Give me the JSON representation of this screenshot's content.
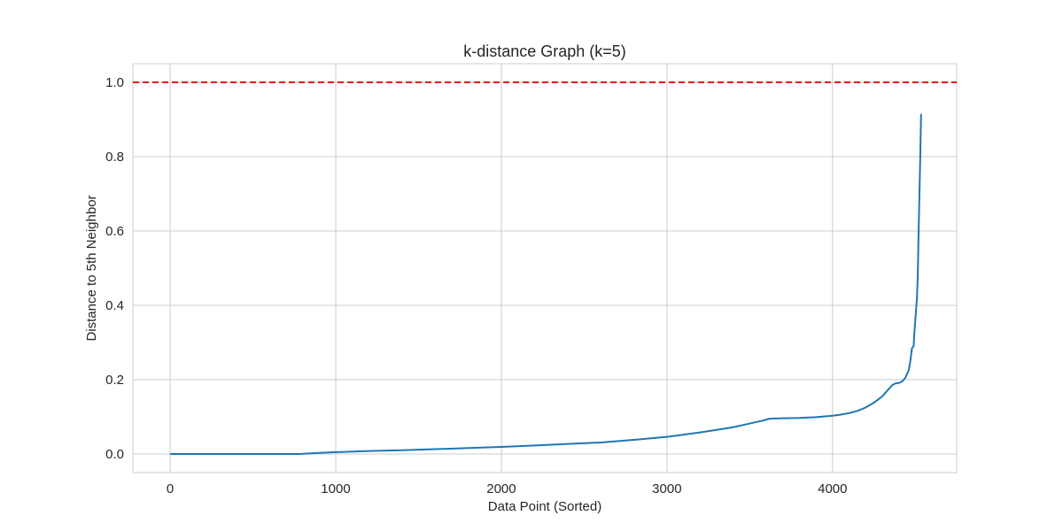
{
  "chart_data": {
    "type": "line",
    "title": "k-distance Graph (k=5)",
    "xlabel": "Data Point (Sorted)",
    "ylabel": "Distance to 5th Neighbor",
    "xlim": [
      -225,
      4750
    ],
    "ylim": [
      -0.05,
      1.05
    ],
    "x_ticks": [
      0,
      1000,
      2000,
      3000,
      4000
    ],
    "x_tick_labels": [
      "0",
      "1000",
      "2000",
      "3000",
      "4000"
    ],
    "y_ticks": [
      0.0,
      0.2,
      0.4,
      0.6,
      0.8,
      1.0
    ],
    "y_tick_labels": [
      "0.0",
      "0.2",
      "0.4",
      "0.6",
      "0.8",
      "1.0"
    ],
    "grid": true,
    "line_color": "#1f77b4",
    "threshold": {
      "y": 1.0,
      "color": "#e8191b",
      "style": "dashed"
    },
    "series": [
      {
        "x": [
          0,
          200,
          400,
          600,
          780,
          900,
          1000,
          1200,
          1400,
          1600,
          1800,
          2000,
          2200,
          2400,
          2600,
          2800,
          3000,
          3100,
          3200,
          3300,
          3400,
          3500,
          3580,
          3620,
          3700,
          3800,
          3900,
          4000,
          4050,
          4100,
          4150,
          4200,
          4250,
          4300,
          4330,
          4360,
          4380,
          4400,
          4420,
          4440,
          4460,
          4470,
          4480,
          4490,
          4495,
          4500,
          4505,
          4510,
          4515,
          4520,
          4525,
          4530,
          4535
        ],
        "values": [
          0.0,
          0.0,
          0.0,
          0.0,
          0.0,
          0.003,
          0.005,
          0.008,
          0.01,
          0.013,
          0.016,
          0.019,
          0.023,
          0.027,
          0.031,
          0.038,
          0.046,
          0.052,
          0.058,
          0.065,
          0.072,
          0.082,
          0.09,
          0.095,
          0.096,
          0.097,
          0.099,
          0.103,
          0.106,
          0.11,
          0.116,
          0.125,
          0.138,
          0.155,
          0.17,
          0.185,
          0.19,
          0.191,
          0.195,
          0.205,
          0.225,
          0.25,
          0.285,
          0.29,
          0.33,
          0.36,
          0.39,
          0.42,
          0.48,
          0.6,
          0.7,
          0.8,
          0.915
        ]
      }
    ]
  }
}
